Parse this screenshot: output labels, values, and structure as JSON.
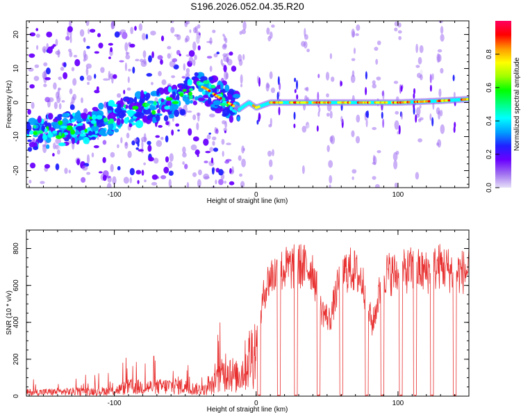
{
  "figure_title": "S196.2026.052.04.35.R20",
  "chart_data": [
    {
      "type": "heatmap",
      "name": "spectrogram",
      "title": "S196.2026.052.04.35.R20",
      "xlabel": "Height of straight line (km)",
      "ylabel": "Frequency (Hz)",
      "xlim": [
        -162,
        150
      ],
      "ylim": [
        -25,
        24
      ],
      "x_ticks": [
        -100,
        0,
        100
      ],
      "x_tick_labels": [
        "-100",
        "0",
        "100"
      ],
      "y_ticks": [
        -20,
        -10,
        0,
        10,
        20
      ],
      "y_tick_labels": [
        "-20",
        "-10",
        "0",
        "10",
        "20"
      ],
      "colorbar": {
        "label": "Normalized spectral amplitude",
        "range": [
          0,
          1
        ],
        "ticks": [
          0.0,
          0.2,
          0.4,
          0.6,
          0.8
        ],
        "tick_labels": [
          "0.0",
          "0.2",
          "0.4",
          "0.6",
          "0.8"
        ],
        "colormap": [
          "#e6e0f8",
          "#a070f0",
          "#6a00ff",
          "#2020ff",
          "#00a0ff",
          "#00ffff",
          "#00ff80",
          "#00ff00",
          "#a0ff00",
          "#ffff00",
          "#ff9900",
          "#ff0000",
          "#ff0060"
        ]
      },
      "ridge": [
        {
          "x": -162,
          "f": -9.5
        },
        {
          "x": -140,
          "f": -8
        },
        {
          "x": -120,
          "f": -7
        },
        {
          "x": -100,
          "f": -4
        },
        {
          "x": -80,
          "f": -2
        },
        {
          "x": -60,
          "f": 0
        },
        {
          "x": -50,
          "f": 2
        },
        {
          "x": -40,
          "f": 5
        },
        {
          "x": -35,
          "f": 4
        },
        {
          "x": -28,
          "f": 2
        },
        {
          "x": -20,
          "f": 0
        },
        {
          "x": -12,
          "f": -2
        },
        {
          "x": -5,
          "f": 0
        },
        {
          "x": 0,
          "f": -1.5
        },
        {
          "x": 10,
          "f": 0
        },
        {
          "x": 50,
          "f": 0
        },
        {
          "x": 100,
          "f": 0
        },
        {
          "x": 130,
          "f": 0.5
        },
        {
          "x": 150,
          "f": 1
        }
      ]
    },
    {
      "type": "line",
      "name": "snr",
      "xlabel": "Height of straight line (km)",
      "ylabel": "SNR (10 * v/v)",
      "xlim": [
        -162,
        150
      ],
      "ylim": [
        0,
        900
      ],
      "x_ticks": [
        -100,
        0,
        100
      ],
      "x_tick_labels": [
        "-100",
        "0",
        "100"
      ],
      "y_ticks": [
        0,
        200,
        400,
        600,
        800
      ],
      "y_tick_labels": [
        "0",
        "200",
        "400",
        "600",
        "800"
      ],
      "line_color": "#e83030",
      "envelope": [
        {
          "x": -162,
          "y": 25
        },
        {
          "x": -130,
          "y": 30
        },
        {
          "x": -100,
          "y": 35
        },
        {
          "x": -90,
          "y": 60
        },
        {
          "x": -70,
          "y": 60
        },
        {
          "x": -55,
          "y": 70
        },
        {
          "x": -45,
          "y": 50
        },
        {
          "x": -35,
          "y": 40
        },
        {
          "x": -25,
          "y": 120
        },
        {
          "x": -20,
          "y": 200
        },
        {
          "x": -15,
          "y": 120
        },
        {
          "x": -10,
          "y": 160
        },
        {
          "x": -5,
          "y": 250
        },
        {
          "x": 0,
          "y": 330
        },
        {
          "x": 3,
          "y": 450
        },
        {
          "x": 6,
          "y": 600
        },
        {
          "x": 10,
          "y": 680
        },
        {
          "x": 15,
          "y": 700
        },
        {
          "x": 20,
          "y": 720
        },
        {
          "x": 30,
          "y": 740
        },
        {
          "x": 40,
          "y": 720
        },
        {
          "x": 45,
          "y": 500
        },
        {
          "x": 52,
          "y": 430
        },
        {
          "x": 60,
          "y": 700
        },
        {
          "x": 68,
          "y": 720
        },
        {
          "x": 75,
          "y": 650
        },
        {
          "x": 82,
          "y": 400
        },
        {
          "x": 90,
          "y": 700
        },
        {
          "x": 100,
          "y": 690
        },
        {
          "x": 110,
          "y": 720
        },
        {
          "x": 120,
          "y": 700
        },
        {
          "x": 130,
          "y": 740
        },
        {
          "x": 140,
          "y": 700
        },
        {
          "x": 150,
          "y": 710
        }
      ],
      "dropouts": [
        2,
        16,
        28,
        44,
        60,
        78,
        89,
        102,
        112,
        124,
        140
      ]
    }
  ]
}
